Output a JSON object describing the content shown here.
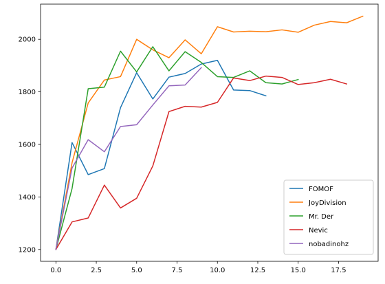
{
  "chart_data": {
    "type": "line",
    "title": "",
    "xlabel": "",
    "ylabel": "",
    "xlim": [
      -0.95,
      19.95
    ],
    "ylim": [
      1155,
      2134
    ],
    "xticks": [
      0,
      2.5,
      5,
      7.5,
      10,
      12.5,
      15,
      17.5
    ],
    "xtick_labels": [
      "0.0",
      "2.5",
      "5.0",
      "7.5",
      "10.0",
      "12.5",
      "15.0",
      "17.5"
    ],
    "yticks": [
      1200,
      1400,
      1600,
      1800,
      2000
    ],
    "ytick_labels": [
      "1200",
      "1400",
      "1600",
      "1800",
      "2000"
    ],
    "grid": false,
    "legend_position": "lower-right",
    "series": [
      {
        "name": "FOMOF",
        "color": "#1f77b4",
        "x": [
          0,
          1,
          2,
          3,
          4,
          5,
          6,
          7,
          8,
          9,
          10,
          11,
          12,
          13
        ],
        "values": [
          1200,
          1607,
          1485,
          1508,
          1740,
          1873,
          1773,
          1856,
          1870,
          1906,
          1920,
          1807,
          1805,
          1785
        ]
      },
      {
        "name": "JoyDivision",
        "color": "#ff7f0e",
        "x": [
          0,
          1,
          2,
          3,
          4,
          5,
          6,
          7,
          8,
          9,
          10,
          11,
          12,
          13,
          14,
          15,
          16,
          17,
          18,
          19
        ],
        "values": [
          1200,
          1530,
          1758,
          1845,
          1858,
          2000,
          1960,
          1930,
          1998,
          1945,
          2048,
          2028,
          2031,
          2029,
          2036,
          2027,
          2054,
          2068,
          2063,
          2088
        ]
      },
      {
        "name": "Mr. Der",
        "color": "#2ca02c",
        "x": [
          0,
          1,
          2,
          3,
          4,
          5,
          6,
          7,
          8,
          9,
          10,
          11,
          12,
          13,
          14,
          15
        ],
        "values": [
          1200,
          1432,
          1812,
          1818,
          1955,
          1876,
          1972,
          1880,
          1953,
          1912,
          1858,
          1855,
          1880,
          1835,
          1830,
          1847
        ]
      },
      {
        "name": "Nevic",
        "color": "#d62728",
        "x": [
          0,
          1,
          2,
          3,
          4,
          5,
          6,
          7,
          8,
          9,
          10,
          11,
          12,
          13,
          14,
          15,
          16,
          17,
          18
        ],
        "values": [
          1200,
          1305,
          1320,
          1445,
          1358,
          1395,
          1518,
          1725,
          1745,
          1742,
          1760,
          1853,
          1843,
          1860,
          1855,
          1828,
          1835,
          1848,
          1830
        ]
      },
      {
        "name": "nobadinohz",
        "color": "#9467bd",
        "x": [
          0,
          1,
          2,
          3,
          4,
          5,
          6,
          7,
          8,
          9
        ],
        "values": [
          1200,
          1510,
          1618,
          1572,
          1668,
          1675,
          1750,
          1823,
          1826,
          1892
        ]
      }
    ]
  }
}
